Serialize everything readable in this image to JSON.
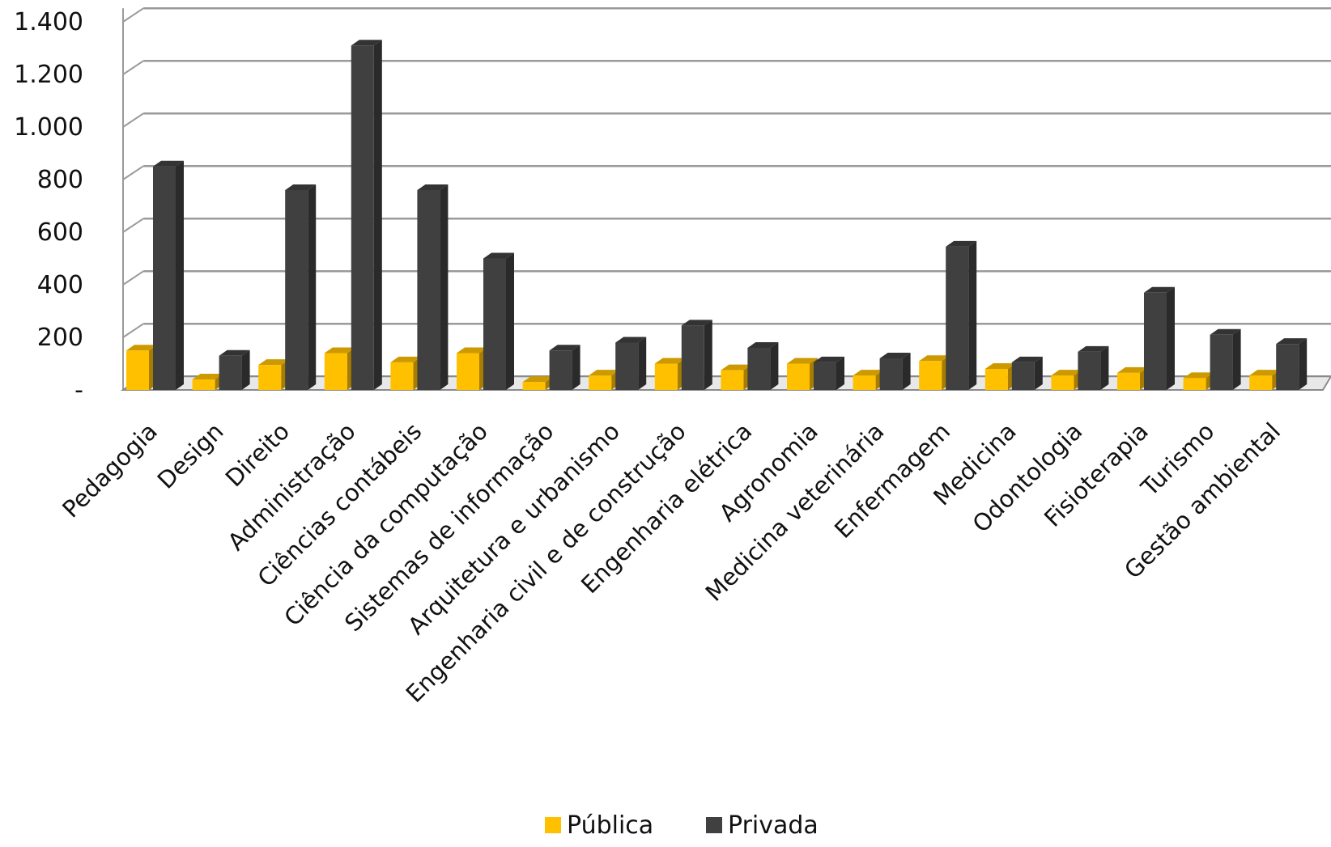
{
  "chart_data": {
    "type": "bar",
    "title": "",
    "xlabel": "",
    "ylabel": "",
    "ylim": [
      0,
      1400
    ],
    "y_ticks": [
      {
        "value": 0,
        "label": "-"
      },
      {
        "value": 200,
        "label": "200"
      },
      {
        "value": 400,
        "label": "400"
      },
      {
        "value": 600,
        "label": "600"
      },
      {
        "value": 800,
        "label": "800"
      },
      {
        "value": 1000,
        "label": "1.000"
      },
      {
        "value": 1200,
        "label": "1.200"
      },
      {
        "value": 1400,
        "label": "1.400"
      }
    ],
    "grid": true,
    "legend_position": "bottom",
    "categories": [
      "Pedagogia",
      "Design",
      "Direito",
      "Administração",
      "Ciências contábeis",
      "Ciência da computação",
      "Sistemas de informação",
      "Arquitetura e urbanismo",
      "Engenharia civil e de construção",
      "Engenharia elétrica",
      "Agronomia",
      "Medicina veterinária",
      "Enfermagem",
      "Medicina",
      "Odontologia",
      "Fisioterapia",
      "Turismo",
      "Gestão ambiental"
    ],
    "series": [
      {
        "name": "Pública",
        "color": "#FFC000",
        "values": [
          150,
          40,
          95,
          140,
          105,
          140,
          30,
          55,
          100,
          75,
          100,
          55,
          110,
          80,
          55,
          65,
          45,
          55
        ]
      },
      {
        "name": "Privada",
        "color": "#404040",
        "values": [
          850,
          130,
          760,
          1310,
          760,
          500,
          150,
          180,
          245,
          160,
          105,
          120,
          545,
          105,
          145,
          370,
          210,
          175
        ]
      }
    ]
  }
}
